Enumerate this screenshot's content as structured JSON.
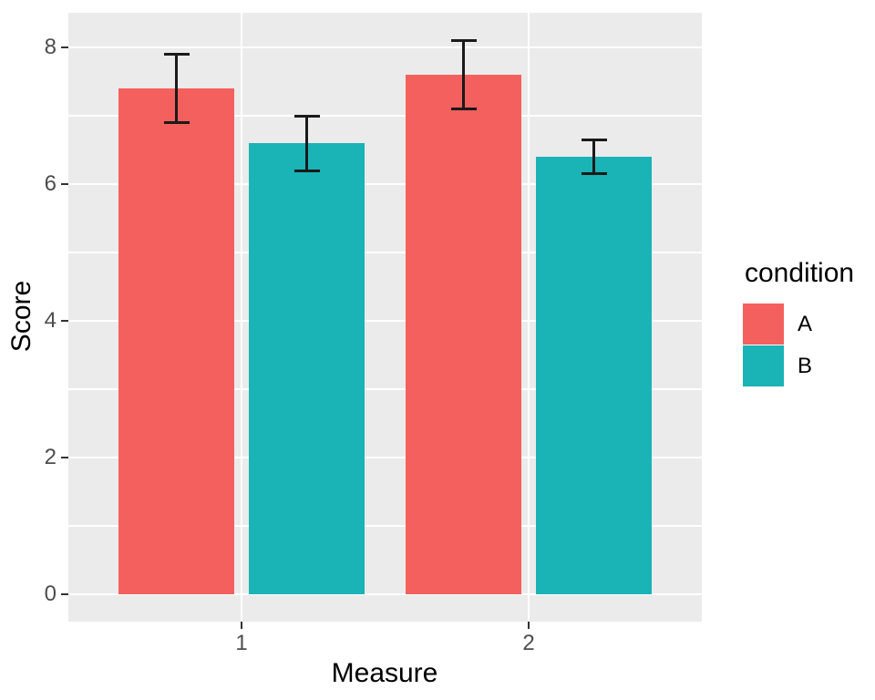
{
  "chart_data": {
    "type": "bar",
    "title": "",
    "xlabel": "Measure",
    "ylabel": "Score",
    "categories": [
      "1",
      "2"
    ],
    "series": [
      {
        "name": "A",
        "color": "#F4605D",
        "values": [
          7.4,
          7.6
        ],
        "error_low": [
          6.9,
          7.1
        ],
        "error_high": [
          7.9,
          8.1
        ]
      },
      {
        "name": "B",
        "color": "#1AB3B6",
        "values": [
          6.6,
          6.4
        ],
        "error_low": [
          6.2,
          6.15
        ],
        "error_high": [
          7.0,
          6.65
        ]
      }
    ],
    "y_ticks": [
      0,
      2,
      4,
      6,
      8
    ],
    "y_minor_ticks": [
      1,
      3,
      5,
      7
    ],
    "ylim": [
      -0.39,
      8.51
    ],
    "grid": true,
    "legend": {
      "title": "condition",
      "position": "right"
    },
    "error_bar_color": "#1A1A1A",
    "theme": {
      "panel_bg": "#EBEBEB",
      "grid_color": "#FFFFFF",
      "tick_label_color": "#4D4D4D",
      "axis_title_color": "#000000",
      "tick_mark_color": "#333333",
      "background": "#FFFFFF"
    }
  }
}
